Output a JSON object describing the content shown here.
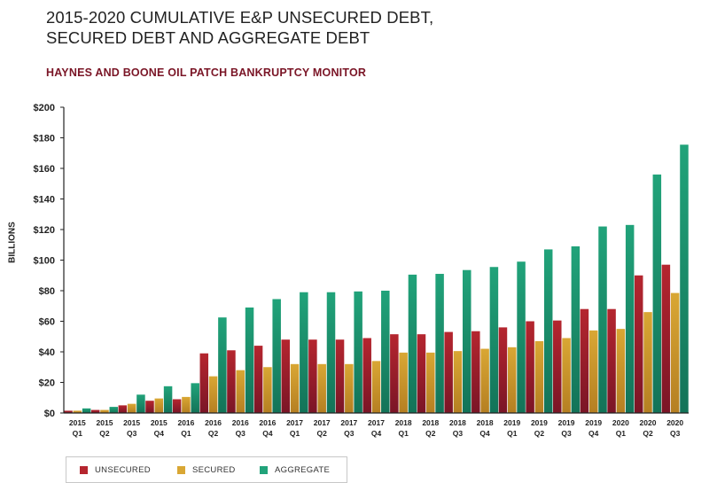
{
  "title_line1": "2015-2020 CUMULATIVE E&P UNSECURED DEBT,",
  "title_line2": "SECURED DEBT AND AGGREGATE DEBT",
  "subtitle": "HAYNES AND BOONE OIL PATCH BANKRUPTCY MONITOR",
  "colors": {
    "unsecured_top": "#b5262f",
    "unsecured_bottom": "#7a1526",
    "secured_top": "#d9a734",
    "secured_bottom": "#b57f22",
    "aggregate_top": "#21a37a",
    "aggregate_bottom": "#137358",
    "axis": "#222222"
  },
  "chart_data": {
    "type": "bar",
    "title": "2015-2020 CUMULATIVE E&P UNSECURED DEBT, SECURED DEBT AND AGGREGATE DEBT",
    "xlabel": "",
    "ylabel": "BILLIONS",
    "ylim": [
      0,
      200
    ],
    "yticks": [
      0,
      20,
      40,
      60,
      80,
      100,
      120,
      140,
      160,
      180,
      200
    ],
    "ytick_labels": [
      "$0",
      "$20",
      "$40",
      "$60",
      "$80",
      "$100",
      "$120",
      "$140",
      "$160",
      "$180",
      "$200"
    ],
    "grid": false,
    "legend_position": "bottom-left",
    "categories": [
      {
        "year": "2015",
        "quarter": "Q1"
      },
      {
        "year": "2015",
        "quarter": "Q2"
      },
      {
        "year": "2015",
        "quarter": "Q3"
      },
      {
        "year": "2015",
        "quarter": "Q4"
      },
      {
        "year": "2016",
        "quarter": "Q1"
      },
      {
        "year": "2016",
        "quarter": "Q2"
      },
      {
        "year": "2016",
        "quarter": "Q3"
      },
      {
        "year": "2016",
        "quarter": "Q4"
      },
      {
        "year": "2017",
        "quarter": "Q1"
      },
      {
        "year": "2017",
        "quarter": "Q2"
      },
      {
        "year": "2017",
        "quarter": "Q3"
      },
      {
        "year": "2017",
        "quarter": "Q4"
      },
      {
        "year": "2018",
        "quarter": "Q1"
      },
      {
        "year": "2018",
        "quarter": "Q2"
      },
      {
        "year": "2018",
        "quarter": "Q3"
      },
      {
        "year": "2018",
        "quarter": "Q4"
      },
      {
        "year": "2019",
        "quarter": "Q1"
      },
      {
        "year": "2019",
        "quarter": "Q2"
      },
      {
        "year": "2019",
        "quarter": "Q3"
      },
      {
        "year": "2019",
        "quarter": "Q4"
      },
      {
        "year": "2020",
        "quarter": "Q1"
      },
      {
        "year": "2020",
        "quarter": "Q2"
      },
      {
        "year": "2020",
        "quarter": "Q3"
      }
    ],
    "series": [
      {
        "name": "UNSECURED",
        "key": "unsecured",
        "values": [
          1.5,
          2,
          5,
          8,
          9,
          39,
          41,
          44,
          48,
          48,
          48,
          49,
          51.5,
          51.5,
          53,
          53.5,
          56,
          60,
          60.5,
          68,
          68,
          90,
          97
        ]
      },
      {
        "name": "SECURED",
        "key": "secured",
        "values": [
          1.5,
          2,
          6,
          9.5,
          10.5,
          24,
          28,
          30,
          32,
          32,
          32,
          34,
          39.5,
          39.5,
          40.5,
          42,
          43,
          47,
          49,
          54,
          55,
          66,
          78.5
        ]
      },
      {
        "name": "AGGREGATE",
        "key": "aggregate",
        "values": [
          3,
          4,
          12,
          17.5,
          19.5,
          62.5,
          69,
          74.5,
          79,
          79,
          79.5,
          80,
          90.5,
          91,
          93.5,
          95.5,
          99,
          107,
          109,
          122,
          123,
          156,
          175.5
        ]
      }
    ]
  }
}
